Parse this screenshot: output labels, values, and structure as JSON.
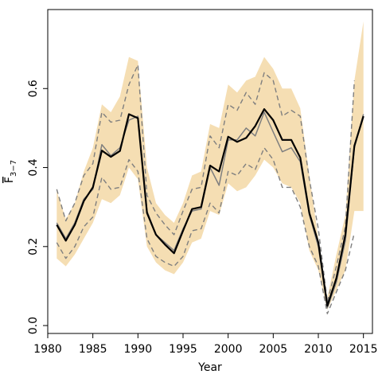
{
  "chart_data": {
    "type": "line",
    "xlabel": "Year",
    "ylabel": "F",
    "ylabel_sub": "3−7",
    "xlim": [
      1980,
      2016
    ],
    "ylim": [
      -0.02,
      0.8
    ],
    "x_ticks": [
      1980,
      1985,
      1990,
      1995,
      2000,
      2005,
      2010,
      2015
    ],
    "y_ticks": [
      0.0,
      0.2,
      0.4,
      0.6
    ],
    "y_tick_labels": [
      "0.0",
      "0.2",
      "0.4",
      "0.6"
    ],
    "grid": false,
    "colors": {
      "band": "#f5deb3",
      "mean": "#000000",
      "median": "#7f7f7f",
      "ci": "#7f7f7f"
    },
    "x": [
      1981,
      1982,
      1983,
      1984,
      1985,
      1986,
      1987,
      1988,
      1989,
      1990,
      1991,
      1992,
      1993,
      1994,
      1995,
      1996,
      1997,
      1998,
      1999,
      2000,
      2001,
      2002,
      2003,
      2004,
      2005,
      2006,
      2007,
      2008,
      2009,
      2010,
      2011,
      2012,
      2013,
      2014,
      2015
    ],
    "band_upper": [
      0.34,
      0.27,
      0.31,
      0.39,
      0.45,
      0.56,
      0.54,
      0.58,
      0.68,
      0.67,
      0.4,
      0.31,
      0.28,
      0.26,
      0.31,
      0.38,
      0.39,
      0.51,
      0.5,
      0.61,
      0.59,
      0.62,
      0.63,
      0.68,
      0.65,
      0.6,
      0.6,
      0.55,
      0.38,
      0.22,
      0.07,
      0.18,
      0.28,
      0.62,
      0.77
    ],
    "band_lower": [
      0.17,
      0.15,
      0.18,
      0.22,
      0.26,
      0.32,
      0.31,
      0.33,
      0.4,
      0.37,
      0.2,
      0.16,
      0.14,
      0.13,
      0.16,
      0.21,
      0.22,
      0.29,
      0.28,
      0.36,
      0.34,
      0.35,
      0.38,
      0.42,
      0.4,
      0.36,
      0.35,
      0.31,
      0.19,
      0.14,
      0.04,
      0.09,
      0.14,
      0.29,
      0.29
    ],
    "series": [
      {
        "role": "mean",
        "values": [
          0.255,
          0.215,
          0.255,
          0.315,
          0.35,
          0.443,
          0.427,
          0.442,
          0.535,
          0.525,
          0.285,
          0.23,
          0.205,
          0.183,
          0.24,
          0.295,
          0.3,
          0.405,
          0.39,
          0.478,
          0.465,
          0.475,
          0.505,
          0.548,
          0.52,
          0.47,
          0.47,
          0.425,
          0.285,
          0.21,
          0.05,
          0.12,
          0.23,
          0.455,
          0.53
        ]
      },
      {
        "role": "median",
        "values": [
          0.26,
          0.22,
          0.26,
          0.32,
          0.345,
          0.458,
          0.43,
          0.45,
          0.52,
          0.53,
          0.29,
          0.23,
          0.21,
          0.19,
          0.245,
          0.29,
          0.295,
          0.4,
          0.355,
          0.47,
          0.47,
          0.5,
          0.48,
          0.54,
          0.49,
          0.44,
          0.45,
          0.415,
          0.28,
          0.2,
          0.045,
          0.11,
          0.215,
          0.45,
          0.535
        ]
      },
      {
        "role": "ci_upper",
        "values": [
          0.345,
          0.265,
          0.31,
          0.38,
          0.41,
          0.54,
          0.515,
          0.52,
          0.61,
          0.66,
          0.33,
          0.285,
          0.255,
          0.23,
          0.29,
          0.345,
          0.35,
          0.48,
          0.45,
          0.56,
          0.545,
          0.59,
          0.56,
          0.64,
          0.62,
          0.53,
          0.545,
          0.53,
          0.37,
          0.245,
          0.06,
          0.15,
          0.25,
          0.62,
          null
        ]
      },
      {
        "role": "ci_lower",
        "values": [
          0.21,
          0.17,
          0.2,
          0.25,
          0.275,
          0.375,
          0.345,
          0.35,
          0.42,
          0.39,
          0.22,
          0.175,
          0.16,
          0.15,
          0.175,
          0.24,
          0.245,
          0.31,
          0.285,
          0.39,
          0.38,
          0.41,
          0.395,
          0.45,
          0.42,
          0.35,
          0.35,
          0.3,
          0.2,
          0.15,
          0.03,
          0.085,
          0.14,
          0.235,
          null
        ]
      }
    ]
  }
}
